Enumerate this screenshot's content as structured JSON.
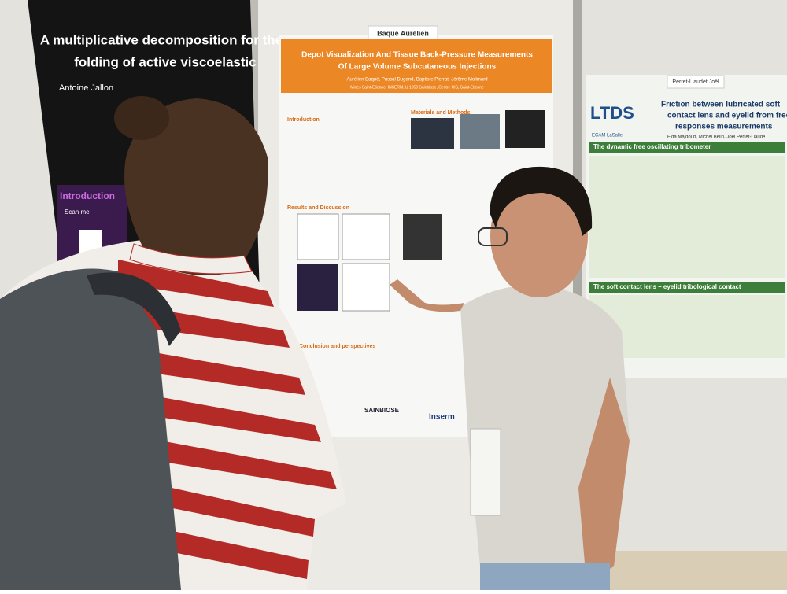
{
  "left_poster": {
    "title_lines": [
      "A multiplicative decomposition for the",
      "folding of active viscoelastic"
    ],
    "authors": "Antoine Jallon",
    "section": "Introduction",
    "scan_text": "Scan me"
  },
  "middle_poster": {
    "name_tag": "Baqué Aurélien",
    "title_lines": [
      "Depot Visualization And Tissue Back-Pressure Measurements",
      "Of Large Volume Subcutaneous Injections"
    ],
    "authors": "Aurélien Baqué, Pascal Dugand, Baptiste Pierrat, Jérôme Molimard",
    "affiliation": "Mines Saint-Etienne, INSERM, U 1059 Sainbiose, Centre CIS, Saint-Etienne",
    "sections": [
      "Introduction",
      "Materials and Methods",
      "Results and Discussion",
      "Conclusion and perspectives"
    ],
    "logos": [
      "SAINBIOSE",
      "Inserm"
    ]
  },
  "right_poster": {
    "name_tag": "Perret-Liaudet Joël",
    "logo": "LTDS",
    "title_lines": [
      "Friction between lubricated soft",
      "contact lens and eyelid from free",
      "responses measurements"
    ],
    "authors": "Fida Majdoub, Michel Belin, Joël Perret-Liaude",
    "sections": [
      "The dynamic free oscillating tribometer",
      "The soft contact lens – eyelid tribological contact"
    ],
    "partner": "ECAM LaSalle"
  }
}
